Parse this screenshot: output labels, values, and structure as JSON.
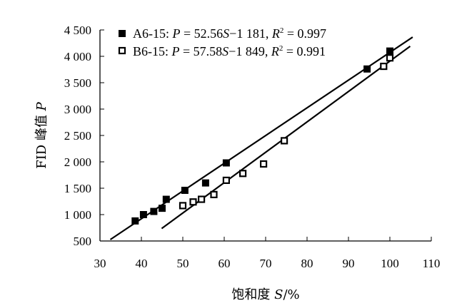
{
  "chart_data": {
    "type": "scatter",
    "xlabel_main": "饱和度 ",
    "xlabel_var": "S",
    "xlabel_unit": "/%",
    "ylabel_main": "FID 峰值 ",
    "ylabel_var": "P",
    "xlim": [
      30,
      110
    ],
    "ylim": [
      500,
      4500
    ],
    "xticks": [
      30,
      40,
      50,
      60,
      70,
      80,
      90,
      100,
      110
    ],
    "yticks": [
      500,
      1000,
      1500,
      2000,
      2500,
      3000,
      3500,
      4000,
      4500
    ],
    "xtick_labels": [
      "30",
      "40",
      "50",
      "60",
      "70",
      "80",
      "90",
      "100",
      "110"
    ],
    "ytick_labels": [
      "500",
      "1 000",
      "1 500",
      "2 000",
      "2 500",
      "3 000",
      "3 500",
      "4 000",
      "4 500"
    ],
    "legend_position": "top-left",
    "series": [
      {
        "name": "A6-15",
        "equation": {
          "pre": ": ",
          "P": "P",
          "eq": " = 52.56",
          "S": "S",
          "const": "−1 181, ",
          "R": "R",
          "sup": "2",
          "r2": " = 0.997"
        },
        "marker": "filled-square",
        "x": [
          38.5,
          40.5,
          43,
          45,
          46,
          50.5,
          55.5,
          60.5,
          94.5,
          100
        ],
        "y": [
          880,
          1000,
          1060,
          1120,
          1290,
          1460,
          1600,
          1980,
          3760,
          4100
        ],
        "fit": {
          "slope": 52.56,
          "intercept": -1181,
          "x_range": [
            32.5,
            105.5
          ]
        }
      },
      {
        "name": "B6-15",
        "equation": {
          "pre": ": ",
          "P": "P",
          "eq": " = 57.58",
          "S": "S",
          "const": "−1 849, ",
          "R": "R",
          "sup": "2",
          "r2": " = 0.991"
        },
        "marker": "open-square",
        "x": [
          50,
          52.5,
          54.5,
          57.5,
          60.5,
          64.5,
          69.5,
          74.5,
          98.5,
          100
        ],
        "y": [
          1170,
          1240,
          1290,
          1380,
          1650,
          1780,
          1960,
          2400,
          3810,
          3970
        ],
        "fit": {
          "slope": 57.58,
          "intercept": -1849,
          "x_range": [
            44.9,
            104.9
          ]
        }
      }
    ]
  }
}
